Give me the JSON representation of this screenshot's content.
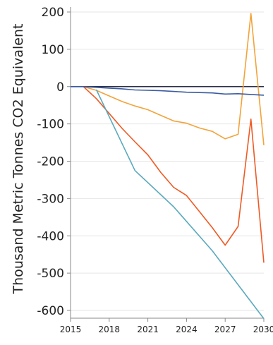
{
  "chart_data": {
    "type": "line",
    "ylabel": "Thousand Metric Tonnes CO2 Equivalent",
    "xlabel": "",
    "xlim": [
      2015,
      2030
    ],
    "ylim": [
      -650,
      210
    ],
    "x_ticks": [
      "2015",
      "2018",
      "2021",
      "2024",
      "2027",
      "2030"
    ],
    "y_ticks": [
      "200",
      "100",
      "0",
      "-100",
      "-200",
      "-300",
      "-400",
      "-500",
      "-600"
    ],
    "grid": "horizontal",
    "zero_line": true,
    "series": [
      {
        "color": "#f2a33a",
        "x": [
          2016,
          2017,
          2018,
          2019,
          2020,
          2021,
          2022,
          2023,
          2024,
          2025,
          2026,
          2027,
          2028,
          2029,
          2030
        ],
        "y": [
          0,
          -10,
          -25,
          -40,
          -52,
          -62,
          -77,
          -92,
          -98,
          -111,
          -120,
          -140,
          -128,
          196,
          -157
        ]
      },
      {
        "color": "#ee5a24",
        "x": [
          2016,
          2017,
          2018,
          2019,
          2020,
          2021,
          2022,
          2023,
          2024,
          2025,
          2026,
          2027,
          2028,
          2029,
          2030
        ],
        "y": [
          0,
          -32,
          -72,
          -112,
          -148,
          -183,
          -230,
          -270,
          -292,
          -335,
          -378,
          -425,
          -375,
          -87,
          -472
        ]
      },
      {
        "color": "#5aa9be",
        "x": [
          2017,
          2020,
          2023,
          2026,
          2030
        ],
        "y": [
          -8,
          -225,
          -322,
          -440,
          -622
        ]
      },
      {
        "color": "#3a5ba0",
        "x": [
          2015,
          2016,
          2017,
          2018,
          2019,
          2020,
          2021,
          2022,
          2023,
          2024,
          2025,
          2026,
          2027,
          2028,
          2029,
          2030
        ],
        "y": [
          0,
          0,
          -2,
          -4,
          -6,
          -9,
          -10,
          -11,
          -13,
          -15,
          -16,
          -17,
          -20,
          -19,
          -21,
          -23
        ]
      }
    ]
  }
}
